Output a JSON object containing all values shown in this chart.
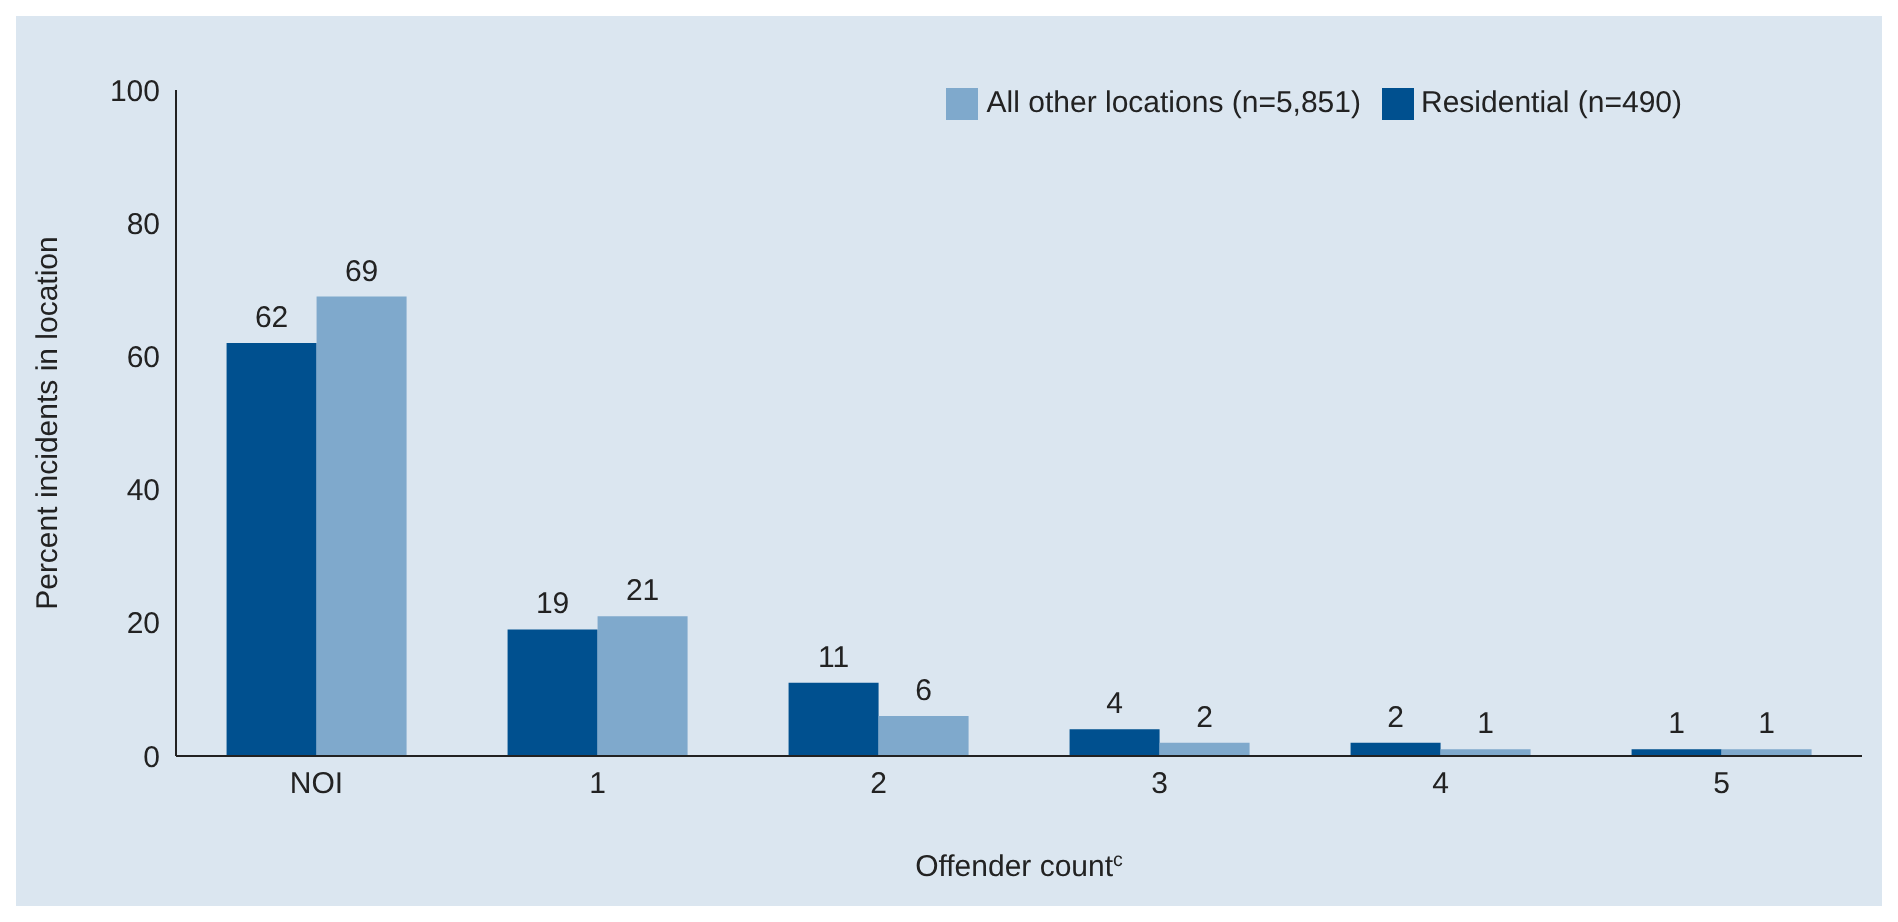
{
  "chart_data": {
    "type": "bar",
    "xlabel": "Offender count$^{c}$",
    "ylabel": "Percent incidents in location",
    "categories": [
      "NOI",
      "1",
      "2",
      "3",
      "4",
      "5"
    ],
    "series": [
      {
        "name": "Residential (n=490)",
        "color": "#00508f",
        "values": [
          62,
          19,
          11,
          4,
          2,
          1
        ]
      },
      {
        "name": "All other locations (n=5,851)",
        "color": "#7fa9cc",
        "values": [
          69,
          21,
          6,
          2,
          1,
          1
        ]
      }
    ],
    "ylim": [
      0,
      100
    ],
    "yticks": [
      0,
      20,
      40,
      60,
      80,
      100
    ],
    "grid": false,
    "legend": "top right",
    "data_labels": true
  }
}
